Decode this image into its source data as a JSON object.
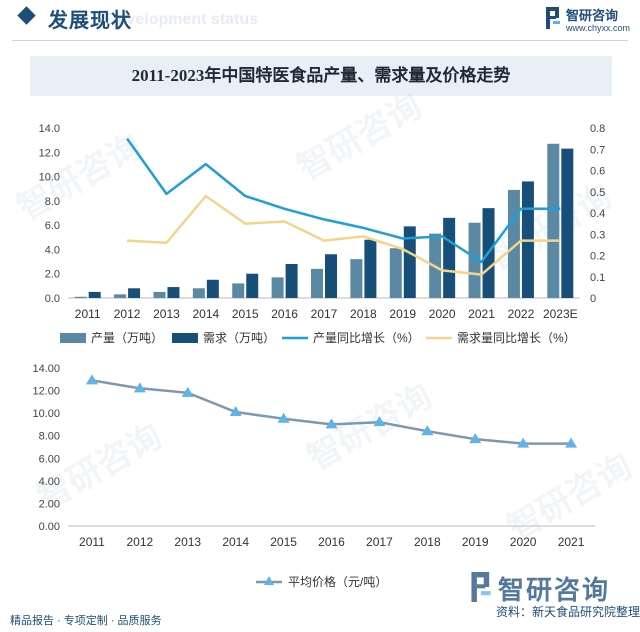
{
  "header": {
    "title": "发展现状",
    "title_en": "Development status",
    "brand_name": "智研咨询",
    "brand_url": "www.chyxx.com"
  },
  "banner": {
    "title": "2011-2023年中国特医食品产量、需求量及价格走势"
  },
  "colors": {
    "production_bar": "#5b88a3",
    "demand_bar": "#184f78",
    "production_growth_line": "#1f9fd6",
    "demand_growth_line": "#f2d58a",
    "price_line": "#7f97b0",
    "price_marker": "#5fb3e6",
    "brand": "#1e4d7a"
  },
  "chart_data": [
    {
      "type": "bar",
      "categories": [
        "2011",
        "2012",
        "2013",
        "2014",
        "2015",
        "2016",
        "2017",
        "2018",
        "2019",
        "2020",
        "2021",
        "2022",
        "2023E"
      ],
      "series": [
        {
          "name": "产量（万吨）",
          "kind": "bar",
          "axis": "left",
          "values": [
            0.1,
            0.3,
            0.5,
            0.8,
            1.2,
            1.7,
            2.4,
            3.2,
            4.1,
            5.3,
            6.2,
            8.9,
            12.7
          ]
        },
        {
          "name": "需求（万吨）",
          "kind": "bar",
          "axis": "left",
          "values": [
            0.5,
            0.8,
            0.9,
            1.5,
            2.0,
            2.8,
            3.6,
            4.8,
            5.9,
            6.6,
            7.4,
            9.6,
            12.3
          ]
        },
        {
          "name": "产量同比增长（%）",
          "kind": "line",
          "axis": "right",
          "values": [
            null,
            0.75,
            0.49,
            0.63,
            0.48,
            0.42,
            0.37,
            0.33,
            0.28,
            0.29,
            0.17,
            0.42,
            0.42
          ]
        },
        {
          "name": "需求量同比增长（%）",
          "kind": "line",
          "axis": "right",
          "values": [
            null,
            0.27,
            0.26,
            0.48,
            0.35,
            0.36,
            0.27,
            0.29,
            0.23,
            0.13,
            0.11,
            0.27,
            0.27
          ]
        }
      ],
      "y_left_ticks": [
        "0.0",
        "2.0",
        "4.0",
        "6.0",
        "8.0",
        "10.0",
        "12.0",
        "14.0"
      ],
      "y_right_ticks": [
        "0",
        "0.1",
        "0.2",
        "0.3",
        "0.4",
        "0.5",
        "0.6",
        "0.7",
        "0.8"
      ],
      "ylim_left": [
        0,
        14
      ],
      "ylim_right": [
        0,
        0.8
      ],
      "legend": [
        "产量（万吨）",
        "需求（万吨）",
        "产量同比增长（%）",
        "需求量同比增长（%）"
      ],
      "legend_position": "bottom",
      "grid": false
    },
    {
      "type": "line",
      "categories": [
        "2011",
        "2012",
        "2013",
        "2014",
        "2015",
        "2016",
        "2017",
        "2018",
        "2019",
        "2020",
        "2021"
      ],
      "series": [
        {
          "name": "平均价格（元/吨）",
          "values": [
            12.9,
            12.2,
            11.8,
            10.1,
            9.5,
            9.0,
            9.2,
            8.4,
            7.7,
            7.3,
            7.3
          ]
        }
      ],
      "y_ticks": [
        "0.00",
        "2.00",
        "4.00",
        "6.00",
        "8.00",
        "10.00",
        "12.00",
        "14.00"
      ],
      "ylim": [
        0,
        14
      ],
      "legend": [
        "平均价格（元/吨）"
      ],
      "legend_position": "bottom",
      "grid": false
    }
  ],
  "footer": {
    "text": "精品报告 · 专项定制 · 品质服务",
    "corner_name": "智研咨询",
    "corner_sub": "资料：新天食品研究院整理"
  },
  "watermarks": [
    "智研咨询",
    "智研咨询",
    "智研咨询",
    "智研咨询",
    "智研咨询",
    "智研咨询"
  ]
}
